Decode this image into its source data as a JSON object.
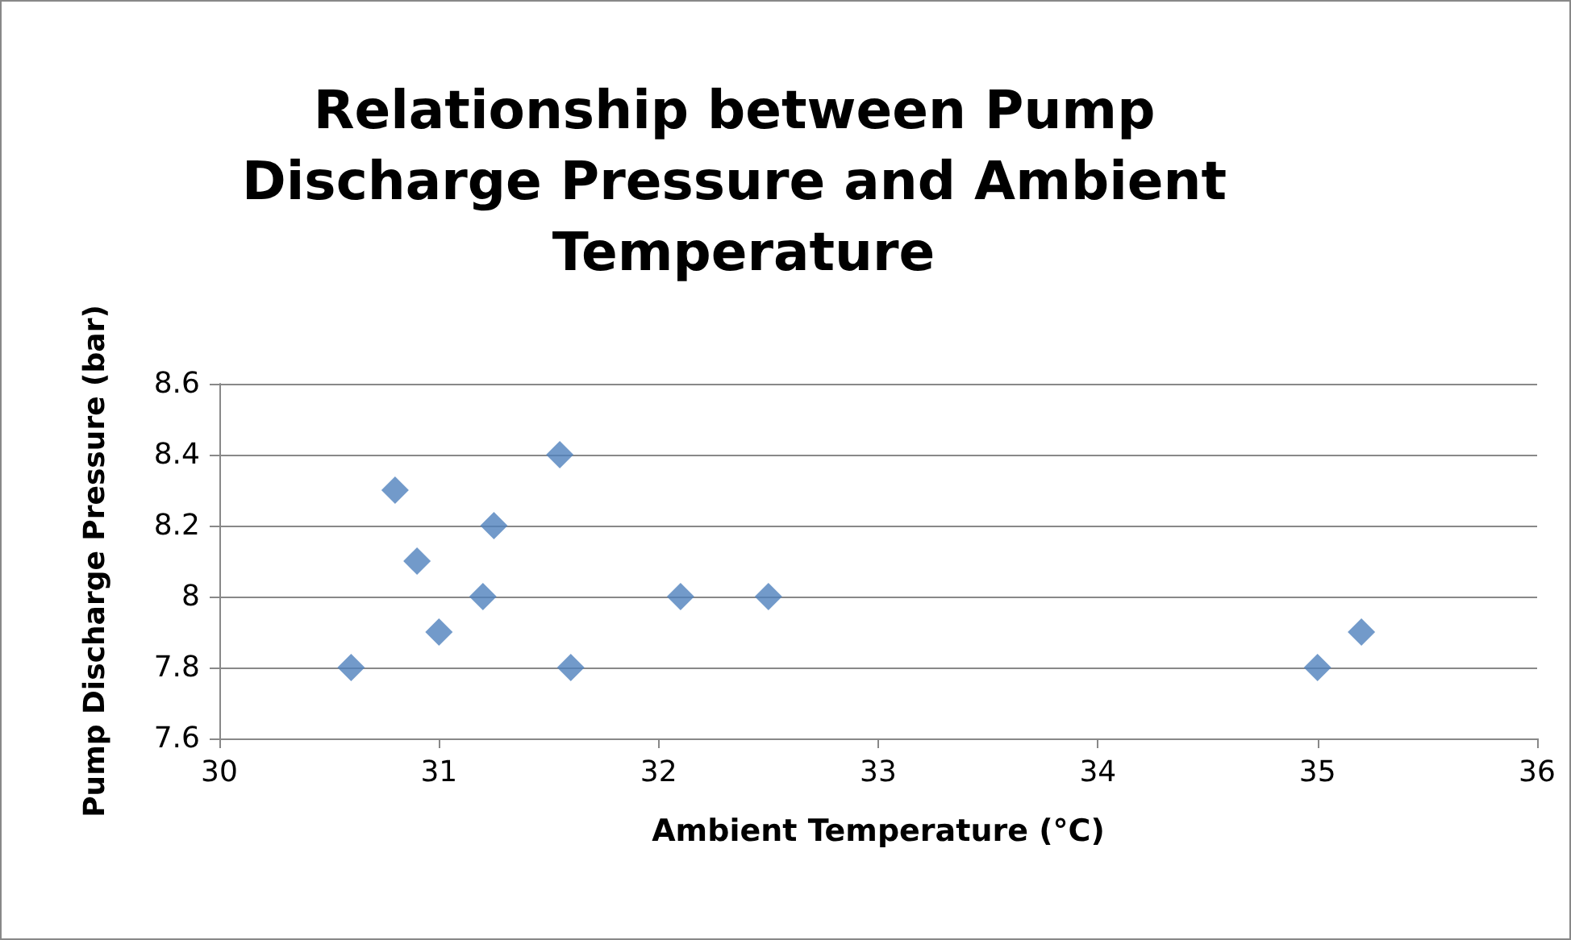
{
  "chart_data": {
    "type": "scatter",
    "title": "Relationship between Pump Discharge Pressure and Ambient Temperature",
    "xlabel": "Ambient Temperature (°C)",
    "ylabel": "Pump Discharge Pressure (bar)",
    "x": [
      30.6,
      30.8,
      30.9,
      31.0,
      31.2,
      31.25,
      31.55,
      31.6,
      32.1,
      32.5,
      35.0,
      35.2
    ],
    "series": [
      {
        "color": "#4f81bd",
        "values": [
          7.8,
          8.3,
          8.1,
          7.9,
          8.0,
          8.2,
          8.4,
          7.8,
          8.0,
          8.0,
          7.8,
          7.9
        ]
      }
    ],
    "xlim": [
      30,
      36
    ],
    "xticks": [
      30,
      31,
      32,
      33,
      34,
      35,
      36
    ],
    "ylim": [
      7.6,
      8.6
    ],
    "yticks": [
      7.6,
      7.8,
      8,
      8.2,
      8.4,
      8.6
    ],
    "grid": "y",
    "marker": "diamond"
  }
}
